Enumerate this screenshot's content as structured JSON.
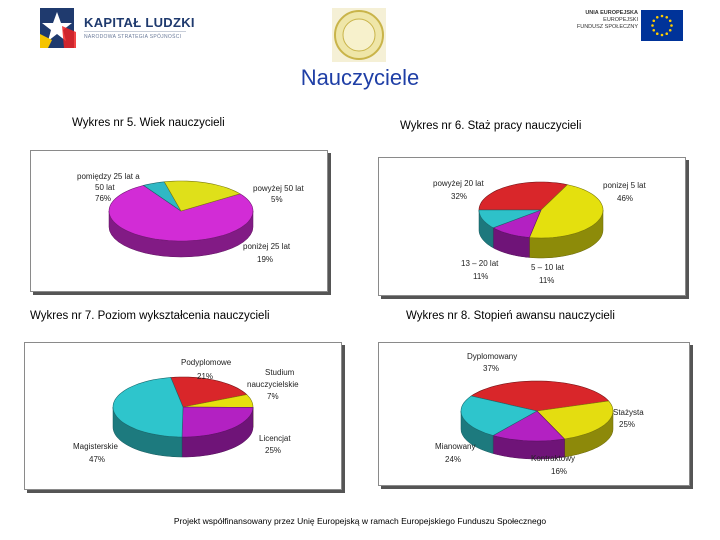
{
  "header": {
    "kl_title": "KAPITAŁ LUDZKI",
    "kl_subtitle": "NARODOWA STRATEGIA SPÓJNOŚCI",
    "seal_text": "",
    "eu_line1": "UNIA EUROPEJSKA",
    "eu_line2": "EUROPEJSKI",
    "eu_line3": "FUNDUSZ SPOŁECZNY",
    "colors": {
      "kl_blue": "#1f3a6e",
      "eu_blue": "#003399",
      "eu_star": "#ffcc00"
    }
  },
  "page_title": "Nauczyciele",
  "footer": "Projekt współfinansowany przez Unię Europejską w ramach Europejskiego Funduszu Społecznego",
  "charts": [
    {
      "caption": "Wykres nr 5. Wiek nauczycieli",
      "labels": [
        {
          "lines": [
            "pomiędzy 25 lat a",
            "50 lat",
            "76%"
          ]
        },
        {
          "lines": [
            "powyżej 50 lat",
            "5%"
          ]
        },
        {
          "lines": [
            "poniżej 25 lat",
            "19%"
          ]
        }
      ]
    },
    {
      "caption": "Wykres nr 6. Staż pracy nauczycieli",
      "labels": [
        {
          "lines": [
            "powyżej 20 lat",
            "32%"
          ]
        },
        {
          "lines": [
            "ponizej 5 lat",
            "46%"
          ]
        },
        {
          "lines": [
            "13 – 20 lat",
            "11%"
          ]
        },
        {
          "lines": [
            "5 – 10 lat",
            "11%"
          ]
        }
      ]
    },
    {
      "caption": "Wykres nr 7. Poziom wykształcenia nauczycieli",
      "labels": [
        {
          "lines": [
            "Podyplomowe",
            "21%"
          ]
        },
        {
          "lines": [
            "Studium",
            "nauczycielskie",
            "7%"
          ]
        },
        {
          "lines": [
            "Licencjat",
            "25%"
          ]
        },
        {
          "lines": [
            "Magisterskie",
            "47%"
          ]
        }
      ]
    },
    {
      "caption": "Wykres nr 8. Stopień awansu nauczycieli",
      "labels": [
        {
          "lines": [
            "Dyplomowany",
            "37%"
          ]
        },
        {
          "lines": [
            "Stażysta",
            "25%"
          ]
        },
        {
          "lines": [
            "Kontraktowy",
            "16%"
          ]
        },
        {
          "lines": [
            "Mianowany",
            "24%"
          ]
        }
      ]
    }
  ],
  "chart_data": [
    {
      "type": "pie",
      "title": "Wykres nr 5. Wiek nauczycieli",
      "categories": [
        "pomiędzy 25 lat a 50 lat",
        "powyżej 50 lat",
        "poniżej 25 lat"
      ],
      "values": [
        76,
        5,
        19
      ],
      "colors": [
        "#d22cd6",
        "#2fb8c4",
        "#dfe01a"
      ]
    },
    {
      "type": "pie",
      "title": "Wykres nr 6. Staż pracy nauczycieli",
      "categories": [
        "powyżej 20 lat",
        "ponizej 5 lat",
        "5 – 10 lat",
        "13 – 20 lat"
      ],
      "values": [
        32,
        46,
        11,
        11
      ],
      "colors": [
        "#d9262a",
        "#e4e00e",
        "#b321c2",
        "#2ec1c9"
      ]
    },
    {
      "type": "pie",
      "title": "Wykres nr 7. Poziom wykształcenia nauczycieli",
      "categories": [
        "Podyplomowe",
        "Studium nauczycielskie",
        "Licencjat",
        "Magisterskie"
      ],
      "values": [
        21,
        7,
        25,
        47
      ],
      "colors": [
        "#d9262a",
        "#e6e00e",
        "#b321c2",
        "#2ec5cc"
      ]
    },
    {
      "type": "pie",
      "title": "Wykres nr 8. Stopień awansu nauczycieli",
      "categories": [
        "Dyplomowany",
        "Stażysta",
        "Kontraktowy",
        "Mianowany"
      ],
      "values": [
        37,
        25,
        16,
        24
      ],
      "colors": [
        "#d9262a",
        "#e4dd10",
        "#b321c2",
        "#2ec5cc"
      ]
    }
  ]
}
